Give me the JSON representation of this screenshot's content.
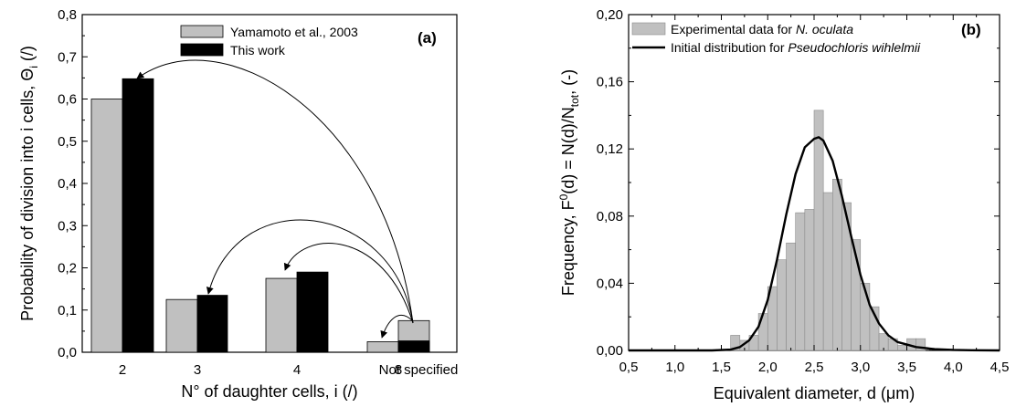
{
  "chart_data": [
    {
      "type": "bar",
      "panel_label": "(a)",
      "xlabel": "N° of daughter cells, i (/)",
      "ylabel_main": "Probability of division into i cells, Θ",
      "ylabel_sub": "i",
      "ylabel_end": " (/)",
      "ylim": [
        0,
        0.8
      ],
      "yticks": [
        "0,0",
        "0,1",
        "0,2",
        "0,3",
        "0,4",
        "0,5",
        "0,6",
        "0,7",
        "0,8"
      ],
      "categories": [
        "2",
        "3",
        "4",
        "8",
        "Not specified"
      ],
      "series": [
        {
          "name": "Yamamoto et al., 2003",
          "color": "#c0c0c0",
          "values": [
            0.6,
            0.125,
            0.175,
            0.025,
            0.075
          ]
        },
        {
          "name": "This work",
          "color": "#000000",
          "values": [
            0.648,
            0.135,
            0.19,
            0.027,
            null
          ]
        }
      ],
      "grid": false,
      "legend": "top-right",
      "annotations": "curved arrows from 'Not specified' bar redistributing to the other categories"
    },
    {
      "type": "bar",
      "panel_label": "(b)",
      "xlabel_main": "Equivalent diameter, d (",
      "xlabel_mu": "μ",
      "xlabel_end": "m)",
      "ylabel_a": "Frequency, F",
      "ylabel_sup": "0",
      "ylabel_b": "(d) = N(d)/N",
      "ylabel_sub": "tot",
      "ylabel_c": ", (-)",
      "xlim": [
        0.5,
        4.5
      ],
      "ylim": [
        0,
        0.2
      ],
      "xticks": [
        "0,5",
        "1,0",
        "1,5",
        "2,0",
        "2,5",
        "3,0",
        "3,5",
        "4,0",
        "4,5"
      ],
      "yticks": [
        "0,00",
        "0,04",
        "0,08",
        "0,12",
        "0,16",
        "0,20"
      ],
      "series": [
        {
          "name_prefix": "Experimental data for ",
          "name_italic": "N. oculata",
          "kind": "histogram",
          "color": "#c0c0c0",
          "bins": [
            {
              "x0": 1.6,
              "x1": 1.7,
              "y": 0.009
            },
            {
              "x0": 1.7,
              "x1": 1.8,
              "y": 0.006
            },
            {
              "x0": 1.8,
              "x1": 1.9,
              "y": 0.009
            },
            {
              "x0": 1.9,
              "x1": 2.0,
              "y": 0.022
            },
            {
              "x0": 2.0,
              "x1": 2.1,
              "y": 0.038
            },
            {
              "x0": 2.1,
              "x1": 2.2,
              "y": 0.054
            },
            {
              "x0": 2.2,
              "x1": 2.3,
              "y": 0.064
            },
            {
              "x0": 2.3,
              "x1": 2.4,
              "y": 0.082
            },
            {
              "x0": 2.4,
              "x1": 2.5,
              "y": 0.084
            },
            {
              "x0": 2.5,
              "x1": 2.6,
              "y": 0.143
            },
            {
              "x0": 2.6,
              "x1": 2.7,
              "y": 0.094
            },
            {
              "x0": 2.7,
              "x1": 2.8,
              "y": 0.102
            },
            {
              "x0": 2.8,
              "x1": 2.9,
              "y": 0.088
            },
            {
              "x0": 2.9,
              "x1": 3.0,
              "y": 0.066
            },
            {
              "x0": 3.0,
              "x1": 3.1,
              "y": 0.04
            },
            {
              "x0": 3.1,
              "x1": 3.2,
              "y": 0.026
            },
            {
              "x0": 3.2,
              "x1": 3.3,
              "y": 0.01
            },
            {
              "x0": 3.3,
              "x1": 3.4,
              "y": 0.007
            },
            {
              "x0": 3.4,
              "x1": 3.5,
              "y": 0.003
            },
            {
              "x0": 3.5,
              "x1": 3.6,
              "y": 0.007
            },
            {
              "x0": 3.6,
              "x1": 3.7,
              "y": 0.007
            }
          ]
        },
        {
          "name_prefix": "Initial distribution for ",
          "name_italic": "Pseudochloris wihlelmii",
          "kind": "line",
          "color": "#000000",
          "x": [
            0.5,
            1.4,
            1.6,
            1.7,
            1.8,
            1.9,
            2.0,
            2.1,
            2.2,
            2.3,
            2.4,
            2.5,
            2.55,
            2.6,
            2.7,
            2.8,
            2.9,
            3.0,
            3.1,
            3.2,
            3.3,
            3.4,
            3.6,
            3.8,
            4.0,
            4.2,
            4.5
          ],
          "y": [
            0,
            0,
            0.0005,
            0.002,
            0.006,
            0.014,
            0.03,
            0.054,
            0.081,
            0.105,
            0.121,
            0.126,
            0.127,
            0.125,
            0.113,
            0.092,
            0.068,
            0.045,
            0.027,
            0.016,
            0.009,
            0.005,
            0.002,
            0.0008,
            0.0003,
            0.0001,
            0
          ]
        }
      ],
      "grid": false,
      "legend": "top-left"
    }
  ]
}
